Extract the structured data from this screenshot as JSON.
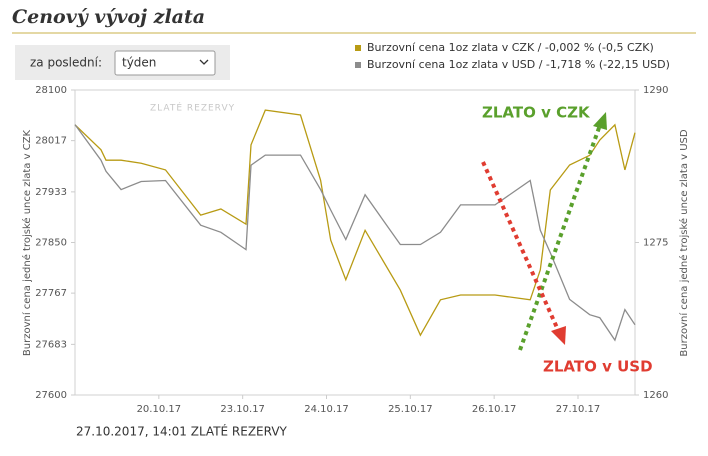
{
  "chart_data": {
    "type": "line",
    "title": "Cenový vývoj zlata",
    "period_label": "za poslední:",
    "period_value": "týden",
    "watermark": "ZLATÉ REZERVY",
    "footer": "27.10.2017, 14:01 ZLATÉ REZERVY",
    "ylabel": "Burzovní cena jedné trojské unce zlata v CZK",
    "y2label": "Burzovní cena jedné trojské unce zlata v USD",
    "annotations": [
      "ZLATO v CZK",
      "ZLATO v USD"
    ],
    "x": [
      0.0,
      0.31,
      0.37,
      0.55,
      0.79,
      1.08,
      1.5,
      1.74,
      2.04,
      2.1,
      2.27,
      2.69,
      2.93,
      3.05,
      3.23,
      3.46,
      3.88,
      4.12,
      4.36,
      4.6,
      5.01,
      5.43,
      5.55,
      5.67,
      5.9,
      6.14,
      6.26,
      6.44,
      6.56,
      6.68
    ],
    "xlim": [
      0.0,
      6.68
    ],
    "xticks": [
      {
        "value": 1,
        "label": "20.10.17"
      },
      {
        "value": 2,
        "label": "23.10.17"
      },
      {
        "value": 3,
        "label": "24.10.17"
      },
      {
        "value": 4,
        "label": "25.10.17"
      },
      {
        "value": 5,
        "label": "26.10.17"
      },
      {
        "value": 6,
        "label": "27.10.17"
      }
    ],
    "ylim": [
      27600,
      28100
    ],
    "yticks": [
      27600,
      27683,
      27767,
      27850,
      27933,
      28017,
      28100
    ],
    "y2lim": [
      1260,
      1290
    ],
    "y2ticks": [
      1260,
      1275,
      1290
    ],
    "grid": false,
    "series": [
      {
        "name": "Burzovní cena 1oz zlata v CZK / -0,002 % (-0,5 CZK)",
        "color": "#b89b14",
        "values": [
          28043,
          28002,
          27985,
          27985,
          27980,
          27969,
          27895,
          27905,
          27880,
          28010,
          28067,
          28059,
          27952,
          27854,
          27789,
          27870,
          27772,
          27698,
          27756,
          27764,
          27764,
          27756,
          27805,
          27936,
          27977,
          27993,
          28018,
          28043,
          27969,
          28030
        ]
      },
      {
        "name": "Burzovní cena 1oz zlata v USD / -1,718 % (-22,15 USD)",
        "color": "#8c8c8c",
        "axis": "y2",
        "values": [
          1286.6,
          1283.1,
          1282,
          1280.2,
          1281,
          1281.1,
          1276.7,
          1276,
          1274.3,
          1282.6,
          1283.6,
          1283.6,
          1280.2,
          1278.2,
          1275.3,
          1279.7,
          1274.8,
          1274.8,
          1276,
          1278.7,
          1278.7,
          1281.1,
          1276.2,
          1274,
          1269.4,
          1267.9,
          1267.6,
          1265.4,
          1268.4,
          1266.9
        ]
      }
    ]
  }
}
